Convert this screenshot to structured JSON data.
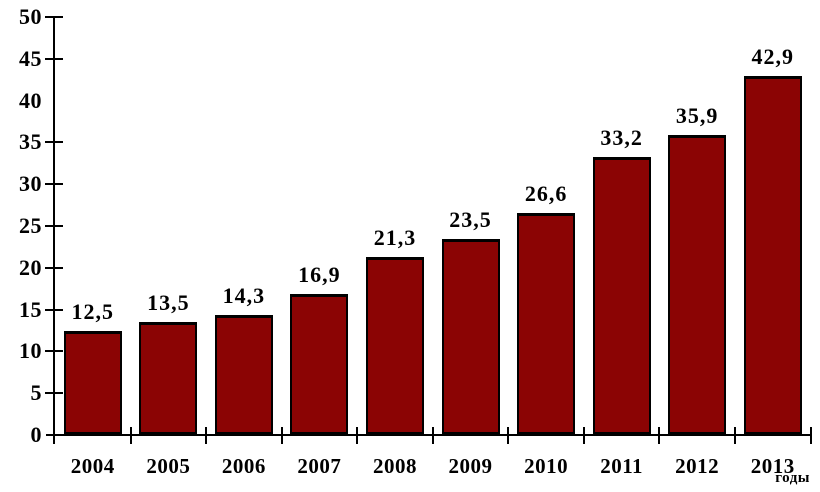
{
  "chart_data": {
    "type": "bar",
    "title": "",
    "categories": [
      "2004",
      "2005",
      "2006",
      "2007",
      "2008",
      "2009",
      "2010",
      "2011",
      "2012",
      "2013"
    ],
    "values": [
      12.5,
      13.5,
      14.3,
      16.9,
      21.3,
      23.5,
      26.6,
      33.2,
      35.9,
      42.9
    ],
    "value_labels": [
      "12,5",
      "13,5",
      "14,3",
      "16,9",
      "21,3",
      "23,5",
      "26,6",
      "33,2",
      "35,9",
      "42,9"
    ],
    "xlabel": "годы",
    "ylabel": "",
    "ylim": [
      0,
      50
    ],
    "yticks": [
      0,
      5,
      10,
      15,
      20,
      25,
      30,
      35,
      40,
      45,
      50
    ],
    "ytick_labels": [
      "0",
      "5",
      "10",
      "15",
      "20",
      "25",
      "30",
      "35",
      "40",
      "45",
      "50"
    ],
    "missing_ytick_marks": [
      40
    ],
    "grid": false,
    "legend": "none",
    "bar_color": "#8B0404",
    "bar_border_color": "#000000",
    "axis_color": "#000000",
    "text_color": "#000000"
  }
}
